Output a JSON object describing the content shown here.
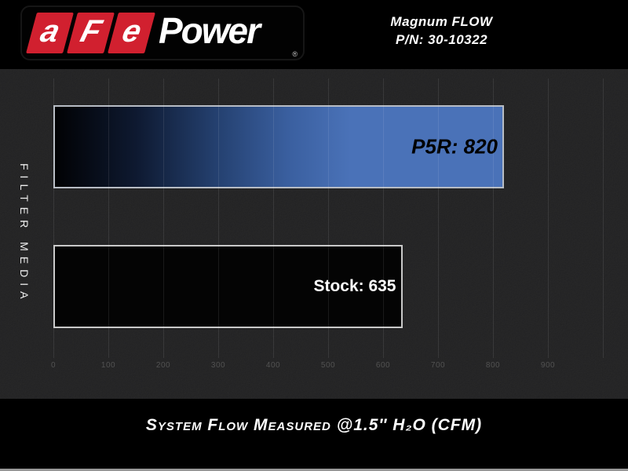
{
  "brand": {
    "afe_letters": [
      "a",
      "F",
      "e"
    ],
    "power_text": "Power",
    "registered_mark": "®",
    "accent_red": "#d1202f"
  },
  "header": {
    "product_line": "Magnum FLOW",
    "part_number": "P/N: 30-10322"
  },
  "chart_data": {
    "type": "bar",
    "orientation": "horizontal",
    "title": "",
    "ylabel": "FILTER MEDIA",
    "xlabel": "System Flow Measured @1.5″ H₂O (CFM)",
    "xlim": [
      0,
      1000
    ],
    "x_ticks": [
      0,
      100,
      200,
      300,
      400,
      500,
      600,
      700,
      800,
      900
    ],
    "x_gridlines": [
      0,
      100,
      200,
      300,
      400,
      500,
      600,
      700,
      800,
      900,
      1000
    ],
    "grid": true,
    "legend": "none",
    "categories": [
      "P5R",
      "Stock"
    ],
    "values": [
      820,
      635
    ],
    "bars": [
      {
        "name": "P5R",
        "value": 820,
        "label": "P5R: 820",
        "color_start": "#010204",
        "color_end": "#4a72b8",
        "label_color": "#000000"
      },
      {
        "name": "Stock",
        "value": 635,
        "label": "Stock: 635",
        "color": "#040404",
        "label_color": "#ffffff"
      }
    ],
    "colors": {
      "background": "#1d1d1e",
      "banner": "#000000",
      "gridline": "rgba(255,255,255,0.09)",
      "tick_text": "#525252"
    }
  }
}
